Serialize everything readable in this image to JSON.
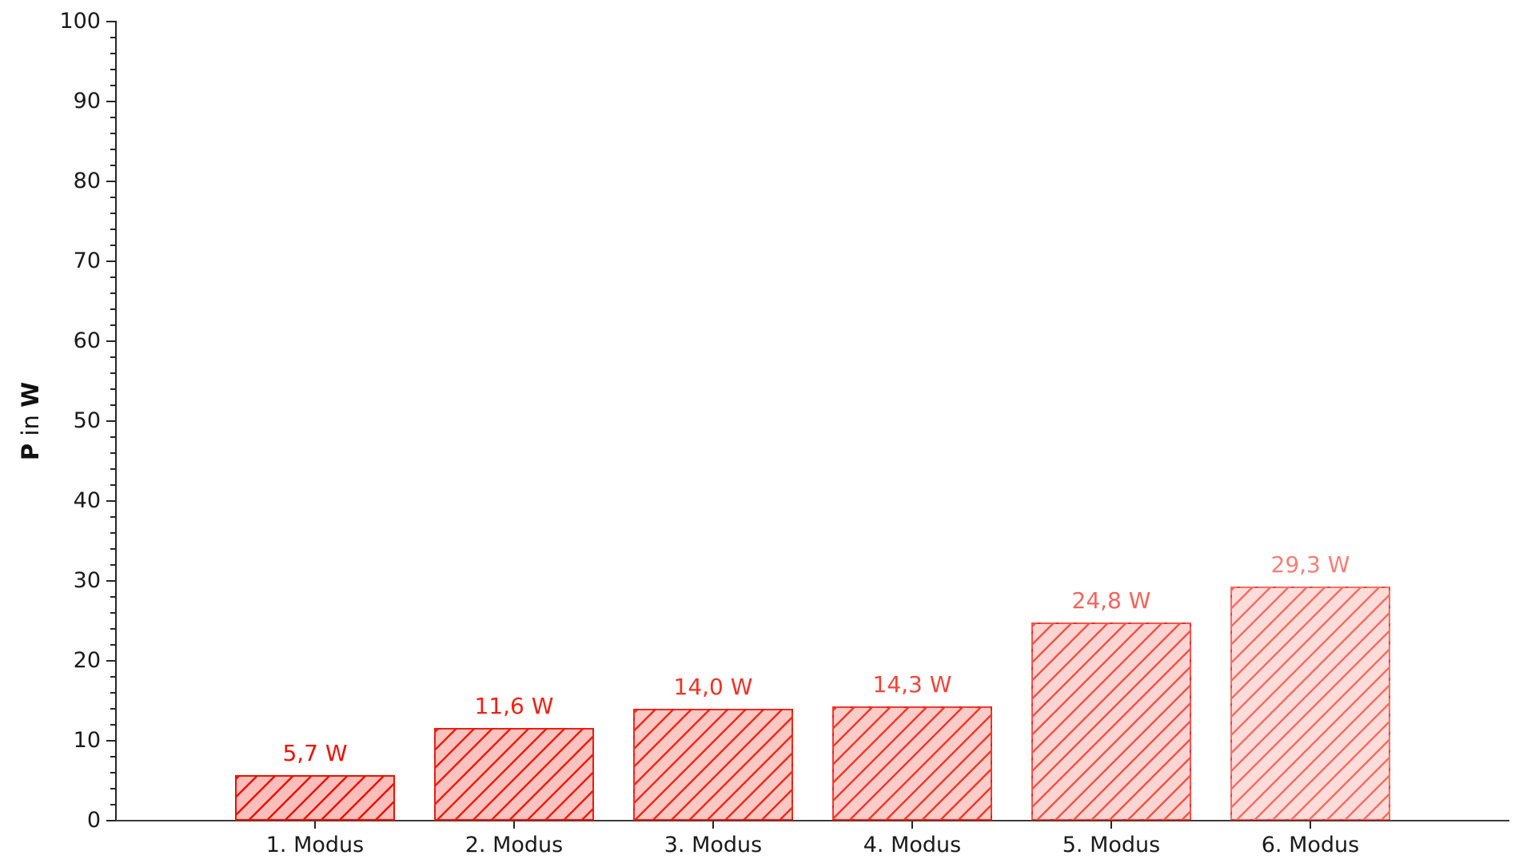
{
  "chart_data": {
    "type": "bar",
    "title": "",
    "categories": [
      "1. Modus",
      "2. Modus",
      "3. Modus",
      "4. Modus",
      "5. Modus",
      "6. Modus"
    ],
    "values": [
      5.7,
      11.6,
      14.0,
      14.3,
      24.8,
      29.3
    ],
    "bar_labels": [
      "5,7 W",
      "11,6 W",
      "14,0 W",
      "14,3 W",
      "24,8 W",
      "29,3 W"
    ],
    "xlabel": "",
    "ylabel": "P in W",
    "ylabel_parts": {
      "p": "P",
      "in": "in",
      "w": "W"
    },
    "ylim": [
      0,
      100
    ],
    "yticks": [
      0,
      10,
      20,
      30,
      40,
      50,
      60,
      70,
      80,
      90,
      100
    ],
    "ytick_labels": [
      "0",
      "10",
      "20",
      "30",
      "40",
      "50",
      "60",
      "70",
      "80",
      "90",
      "100"
    ],
    "minor_tick_step": 2,
    "grid": false,
    "legend": false,
    "hatch_pattern": "/",
    "bar_base_color": "#f01000",
    "bar_alphas": [
      1.0,
      0.93,
      0.86,
      0.78,
      0.65,
      0.54
    ],
    "fill_alpha_factor": 0.27,
    "axis_color": "#262626",
    "tick_label_color": "#1a1a1a",
    "value_label_unit": "W"
  }
}
